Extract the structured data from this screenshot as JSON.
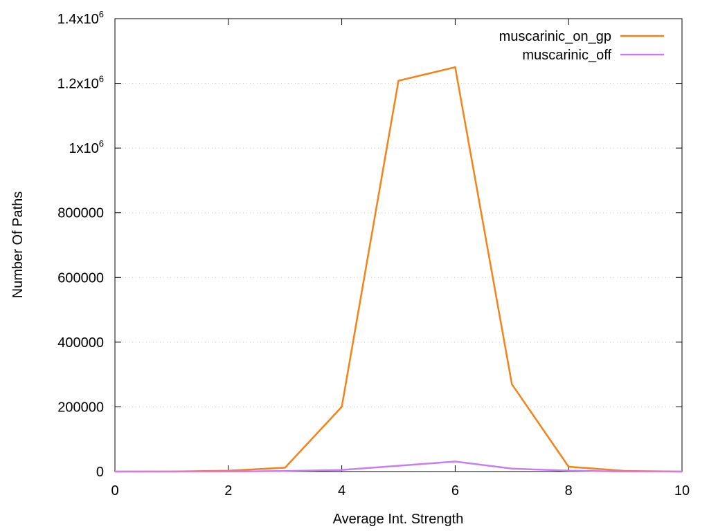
{
  "chart_data": {
    "type": "line",
    "title": "",
    "xlabel": "Average Int. Strength",
    "ylabel": "Number Of Paths",
    "xlim": [
      0,
      10
    ],
    "ylim": [
      0,
      1400000
    ],
    "grid": "horizontal-dotted",
    "legend_position": "top-right",
    "x_ticks": [
      0,
      2,
      4,
      6,
      8,
      10
    ],
    "x_tick_labels": [
      "0",
      "2",
      "4",
      "6",
      "8",
      "10"
    ],
    "y_ticks": [
      {
        "value": 0,
        "label": "0"
      },
      {
        "value": 200000,
        "label": "200000"
      },
      {
        "value": 400000,
        "label": "400000"
      },
      {
        "value": 600000,
        "label": "600000"
      },
      {
        "value": 800000,
        "label": "800000"
      },
      {
        "value": 1000000,
        "base": "1x10",
        "exp": "6"
      },
      {
        "value": 1200000,
        "base": "1.2x10",
        "exp": "6"
      },
      {
        "value": 1400000,
        "base": "1.4x10",
        "exp": "6"
      }
    ],
    "series": [
      {
        "name": "muscarinic_on_gp",
        "color": "#f58216",
        "x": [
          0,
          1,
          2,
          3,
          4,
          5,
          6,
          7,
          8,
          9,
          10
        ],
        "values": [
          0,
          200,
          2500,
          12000,
          200000,
          1208000,
          1250000,
          270000,
          15000,
          2000,
          0
        ]
      },
      {
        "name": "muscarinic_off",
        "color": "#c57ef5",
        "x": [
          0,
          1,
          2,
          3,
          4,
          5,
          6,
          7,
          8,
          9,
          10
        ],
        "values": [
          0,
          0,
          200,
          1500,
          5000,
          18000,
          31000,
          9000,
          2500,
          300,
          0
        ]
      }
    ]
  }
}
